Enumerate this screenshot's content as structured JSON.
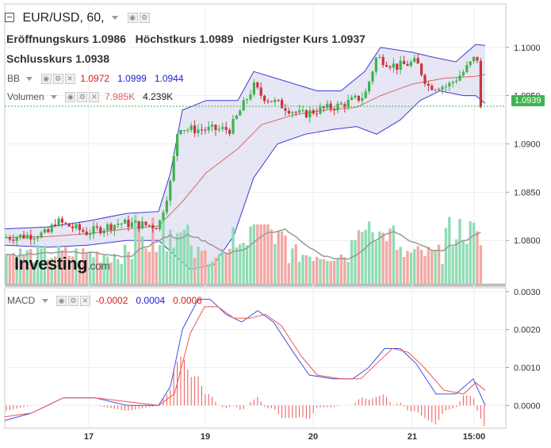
{
  "header": {
    "symbol": "EUR/USD, 60,",
    "open_label": "Eröffnungskurs",
    "open_value": "1.0986",
    "high_label": "Höchstkurs",
    "high_value": "1.0989",
    "low_label": "niedrigster Kurs",
    "low_value": "1.0937",
    "close_label": "Schlusskurs",
    "close_value": "1.0938"
  },
  "indicators": {
    "bb_label": "BB",
    "bb_values": [
      "1.0972",
      "1.0999",
      "1.0944"
    ],
    "volume_label": "Volumen",
    "volume_values": [
      "7.985K",
      "4.239K"
    ],
    "macd_label": "MACD",
    "macd_values": [
      "-0.0002",
      "0.0004",
      "0.0006"
    ]
  },
  "price_tag": "1.0939",
  "logo_text": "Investing",
  "logo_suffix": ".com",
  "colors": {
    "up": "#3fb34f",
    "down": "#c9353a",
    "band_fill": "#dcdcf0",
    "band_line": "#3a3ad6",
    "basis_line": "#e06565",
    "volume_up": "#8fdcb4",
    "volume_down": "#f2a9a4",
    "volume_ma": "#999999",
    "macd_line": "#3a55e0",
    "signal_line": "#ef5555",
    "bb_v1": "#d81e1e",
    "bb_v2": "#1e1ed8",
    "bb_v3": "#1e1ed8",
    "vol_v1": "#e06060",
    "vol_v2": "#222222",
    "macd_v1": "#d81e1e",
    "macd_v2": "#1e1ed8",
    "macd_v3": "#d81e1e"
  },
  "chart_data": [
    {
      "type": "candlestick",
      "x_ticks": [
        "17",
        "19",
        "20",
        "21",
        "15:00"
      ],
      "y_ticks": [
        "1.0800",
        "1.0850",
        "1.0900",
        "1.0950",
        "1.1000"
      ],
      "ylim": [
        1.0755,
        1.1045
      ],
      "series": [
        {
          "name": "BB",
          "kind": "bollinger"
        },
        {
          "name": "Volumen",
          "kind": "volume"
        }
      ],
      "last_price": 1.0939
    },
    {
      "type": "line",
      "title": "MACD",
      "y_ticks": [
        "0.0030",
        "0.0020",
        "0.0010",
        "0.0000"
      ],
      "ylim": [
        -0.0006,
        0.0031
      ],
      "series": [
        {
          "name": "MACD",
          "kind": "macd"
        },
        {
          "name": "Signal",
          "kind": "signal"
        },
        {
          "name": "Histogram",
          "kind": "histogram"
        }
      ]
    }
  ]
}
